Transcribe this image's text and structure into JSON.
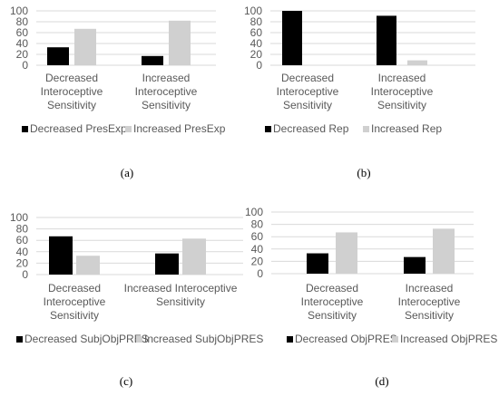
{
  "colors": {
    "decreased": "#000000",
    "increased": "#d0d0d0",
    "grid": "#d9d9d9",
    "text": "#595959"
  },
  "chart_data": [
    {
      "type": "bar",
      "caption": "(a)",
      "categories": [
        [
          "Decreased",
          "Interoceptive",
          "Sensitivity"
        ],
        [
          "Increased",
          "Interoceptive",
          "Sensitivity"
        ]
      ],
      "series": [
        {
          "name": "Decreased PresExp",
          "values": [
            33,
            17
          ]
        },
        {
          "name": "Increased PresExp",
          "values": [
            67,
            82
          ]
        }
      ],
      "ylim": [
        0,
        100
      ],
      "yticks": [
        "0",
        "20",
        "40",
        "60",
        "80",
        "100"
      ],
      "grid": true,
      "legend": "bottom"
    },
    {
      "type": "bar",
      "caption": "(b)",
      "categories": [
        [
          "Decreased",
          "Interoceptive",
          "Sensitivity"
        ],
        [
          "Increased",
          "Interoceptive",
          "Sensitivity"
        ]
      ],
      "series": [
        {
          "name": "Decreased Rep",
          "values": [
            100,
            91
          ]
        },
        {
          "name": "Increased Rep",
          "values": [
            0,
            9
          ]
        }
      ],
      "ylim": [
        0,
        100
      ],
      "yticks": [
        "0",
        "20",
        "40",
        "60",
        "80",
        "100"
      ],
      "grid": true,
      "legend": "bottom"
    },
    {
      "type": "bar",
      "caption": "(c)",
      "categories": [
        [
          "Decreased",
          "Interoceptive",
          "Sensitivity"
        ],
        [
          "Increased Interoceptive",
          "Sensitivity"
        ]
      ],
      "series": [
        {
          "name": "Decreased SubjObjPRES",
          "values": [
            67,
            37
          ]
        },
        {
          "name": "Increased SubjObjPRES",
          "values": [
            33,
            63
          ]
        }
      ],
      "ylim": [
        0,
        100
      ],
      "yticks": [
        "0",
        "20",
        "40",
        "60",
        "80",
        "100"
      ],
      "grid": true,
      "legend": "bottom"
    },
    {
      "type": "bar",
      "caption": "(d)",
      "categories": [
        [
          "Decreased",
          "Interoceptive",
          "Sensitivity"
        ],
        [
          "Increased",
          "Interoceptive",
          "Sensitivity"
        ]
      ],
      "series": [
        {
          "name": "Decreased ObjPRES",
          "values": [
            33,
            27
          ]
        },
        {
          "name": "Increased ObjPRES",
          "values": [
            67,
            73
          ]
        }
      ],
      "ylim": [
        0,
        100
      ],
      "yticks": [
        "0",
        "20",
        "40",
        "60",
        "80",
        "100"
      ],
      "grid": true,
      "legend": "bottom"
    }
  ]
}
